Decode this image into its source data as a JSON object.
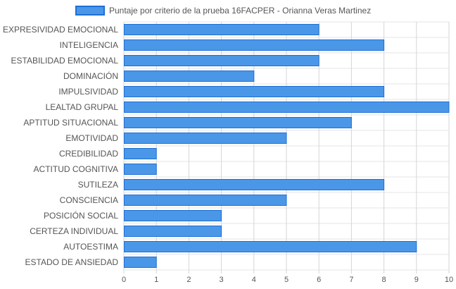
{
  "chart_data": {
    "type": "bar",
    "orientation": "horizontal",
    "series": [
      {
        "name": "Puntaje por criterio de la prueba 16FACPER - Orianna Veras Martinez",
        "color": "#4a97e8",
        "border_color": "#1e6fd6",
        "values": [
          6,
          8,
          6,
          4,
          8,
          10,
          7,
          5,
          1,
          1,
          8,
          5,
          3,
          3,
          9,
          1
        ]
      }
    ],
    "categories": [
      "EXPRESIVIDAD EMOCIONAL",
      "INTELIGENCIA",
      "ESTABILIDAD EMOCIONAL",
      "DOMINACIÓN",
      "IMPULSIVIDAD",
      "LEALTAD GRUPAL",
      "APTITUD SITUACIONAL",
      "EMOTIVIDAD",
      "CREDIBILIDAD",
      "ACTITUD COGNITIVA",
      "SUTILEZA",
      "CONSCIENCIA",
      "POSICIÓN SOCIAL",
      "CERTEZA INDIVIDUAL",
      "AUTOESTIMA",
      "ESTADO DE ANSIEDAD"
    ],
    "xlim": [
      0,
      10
    ],
    "x_ticks": [
      "0",
      "1",
      "2",
      "3",
      "4",
      "5",
      "6",
      "7",
      "8",
      "9",
      "10"
    ],
    "grid": true,
    "legend_position": "top-center"
  }
}
